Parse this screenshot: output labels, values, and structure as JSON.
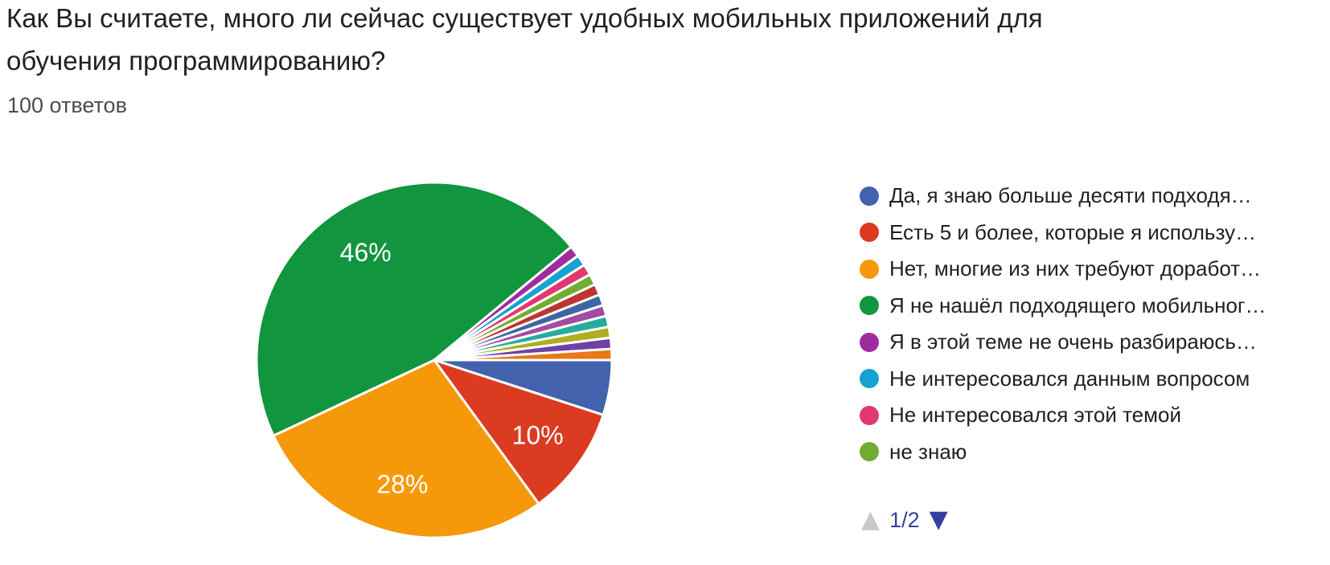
{
  "header": {
    "title_lines": [
      "Как Вы считаете, много ли сейчас существует удобных мобильных приложений для",
      "обучения программированию?"
    ],
    "responses_count": "100 ответов"
  },
  "chart_data": {
    "type": "pie",
    "title": "Как Вы считаете, много ли сейчас существует удобных мобильных приложений для обучения программированию?",
    "subtitle": "100 ответов",
    "total_responses": 100,
    "unit": "percent",
    "start_angle_deg": 90,
    "direction": "clockwise",
    "legend_position": "right",
    "legend_visible_items": 8,
    "slices": [
      {
        "label": "Да, я знаю больше десяти подходя…",
        "value": 5,
        "color": "#4262AD",
        "pct_label": ""
      },
      {
        "label": "Есть 5 и более, которые я использу…",
        "value": 10,
        "color": "#DB3B21",
        "pct_label": "10%"
      },
      {
        "label": "Нет, многие из них требуют доработ…",
        "value": 28,
        "color": "#F5990A",
        "pct_label": "28%"
      },
      {
        "label": "Я не нашёл подходящего мобильног…",
        "value": 46,
        "color": "#12953F",
        "pct_label": "46%"
      },
      {
        "label": "Я в этой теме не очень разбираюсь…",
        "value": 1,
        "color": "#A02B9D",
        "pct_label": ""
      },
      {
        "label": "Не интересовался данным вопросом",
        "value": 1,
        "color": "#17A2CF",
        "pct_label": ""
      },
      {
        "label": "Не интересовался этой темой",
        "value": 1,
        "color": "#E1386F",
        "pct_label": ""
      },
      {
        "label": "не знаю",
        "value": 1,
        "color": "#72AC32",
        "pct_label": ""
      },
      {
        "label": "",
        "value": 1,
        "color": "#BD3430",
        "pct_label": ""
      },
      {
        "label": "",
        "value": 1,
        "color": "#3E66A3",
        "pct_label": ""
      },
      {
        "label": "",
        "value": 1,
        "color": "#A14CA5",
        "pct_label": ""
      },
      {
        "label": "",
        "value": 1,
        "color": "#27AC9B",
        "pct_label": ""
      },
      {
        "label": "",
        "value": 1,
        "color": "#AFAE20",
        "pct_label": ""
      },
      {
        "label": "",
        "value": 1,
        "color": "#6D42A4",
        "pct_label": ""
      },
      {
        "label": "",
        "value": 1,
        "color": "#E97818",
        "pct_label": ""
      }
    ]
  },
  "pagination": {
    "label": "1/2",
    "up_glyph": "▲",
    "down_glyph": "▼",
    "up_color": "#C7C9CC",
    "down_color": "#363DA0",
    "label_color": "#3A3F9F",
    "up_disabled": true,
    "down_disabled": false
  }
}
